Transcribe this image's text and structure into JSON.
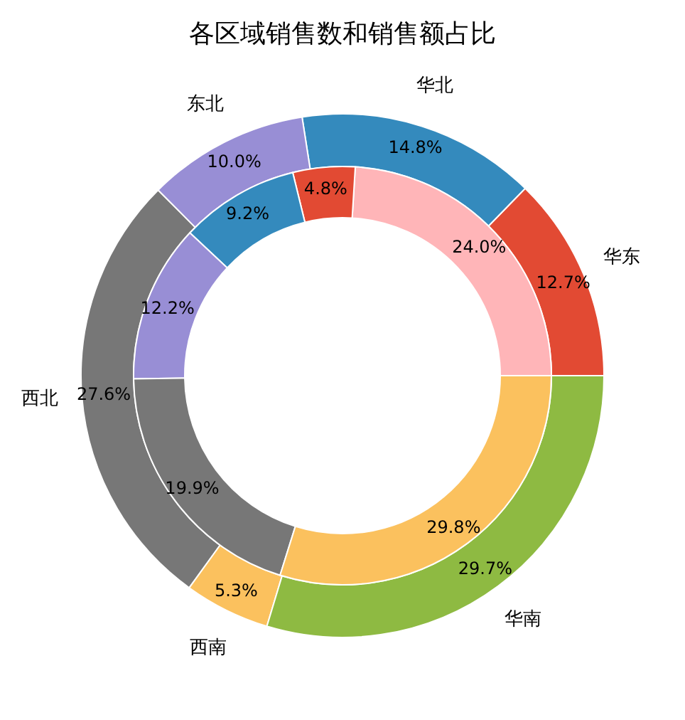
{
  "chart_data": {
    "type": "donut",
    "title": "各区域销售数和销售额占比",
    "categories": [
      "华东",
      "华北",
      "东北",
      "西北",
      "西南",
      "华南"
    ],
    "series": [
      {
        "values": [
          12.7,
          14.8,
          10.0,
          27.6,
          5.3,
          29.7
        ],
        "colors": [
          "#e24a33",
          "#348abd",
          "#988ed5",
          "#777777",
          "#fbc15e",
          "#8eba42"
        ],
        "value_labels": [
          "12.7%",
          "14.8%",
          "10.0%",
          "27.6%",
          "5.3%",
          "29.7%"
        ]
      },
      {
        "values": [
          24.0,
          4.8,
          9.2,
          12.2,
          19.9,
          29.8
        ],
        "colors": [
          "#ffb5b8",
          "#e24a33",
          "#348abd",
          "#988ed5",
          "#777777",
          "#fbc15e"
        ],
        "value_labels": [
          "24.0%",
          "4.8%",
          "9.2%",
          "12.2%",
          "19.9%",
          "29.8%"
        ]
      }
    ],
    "legend": false
  }
}
